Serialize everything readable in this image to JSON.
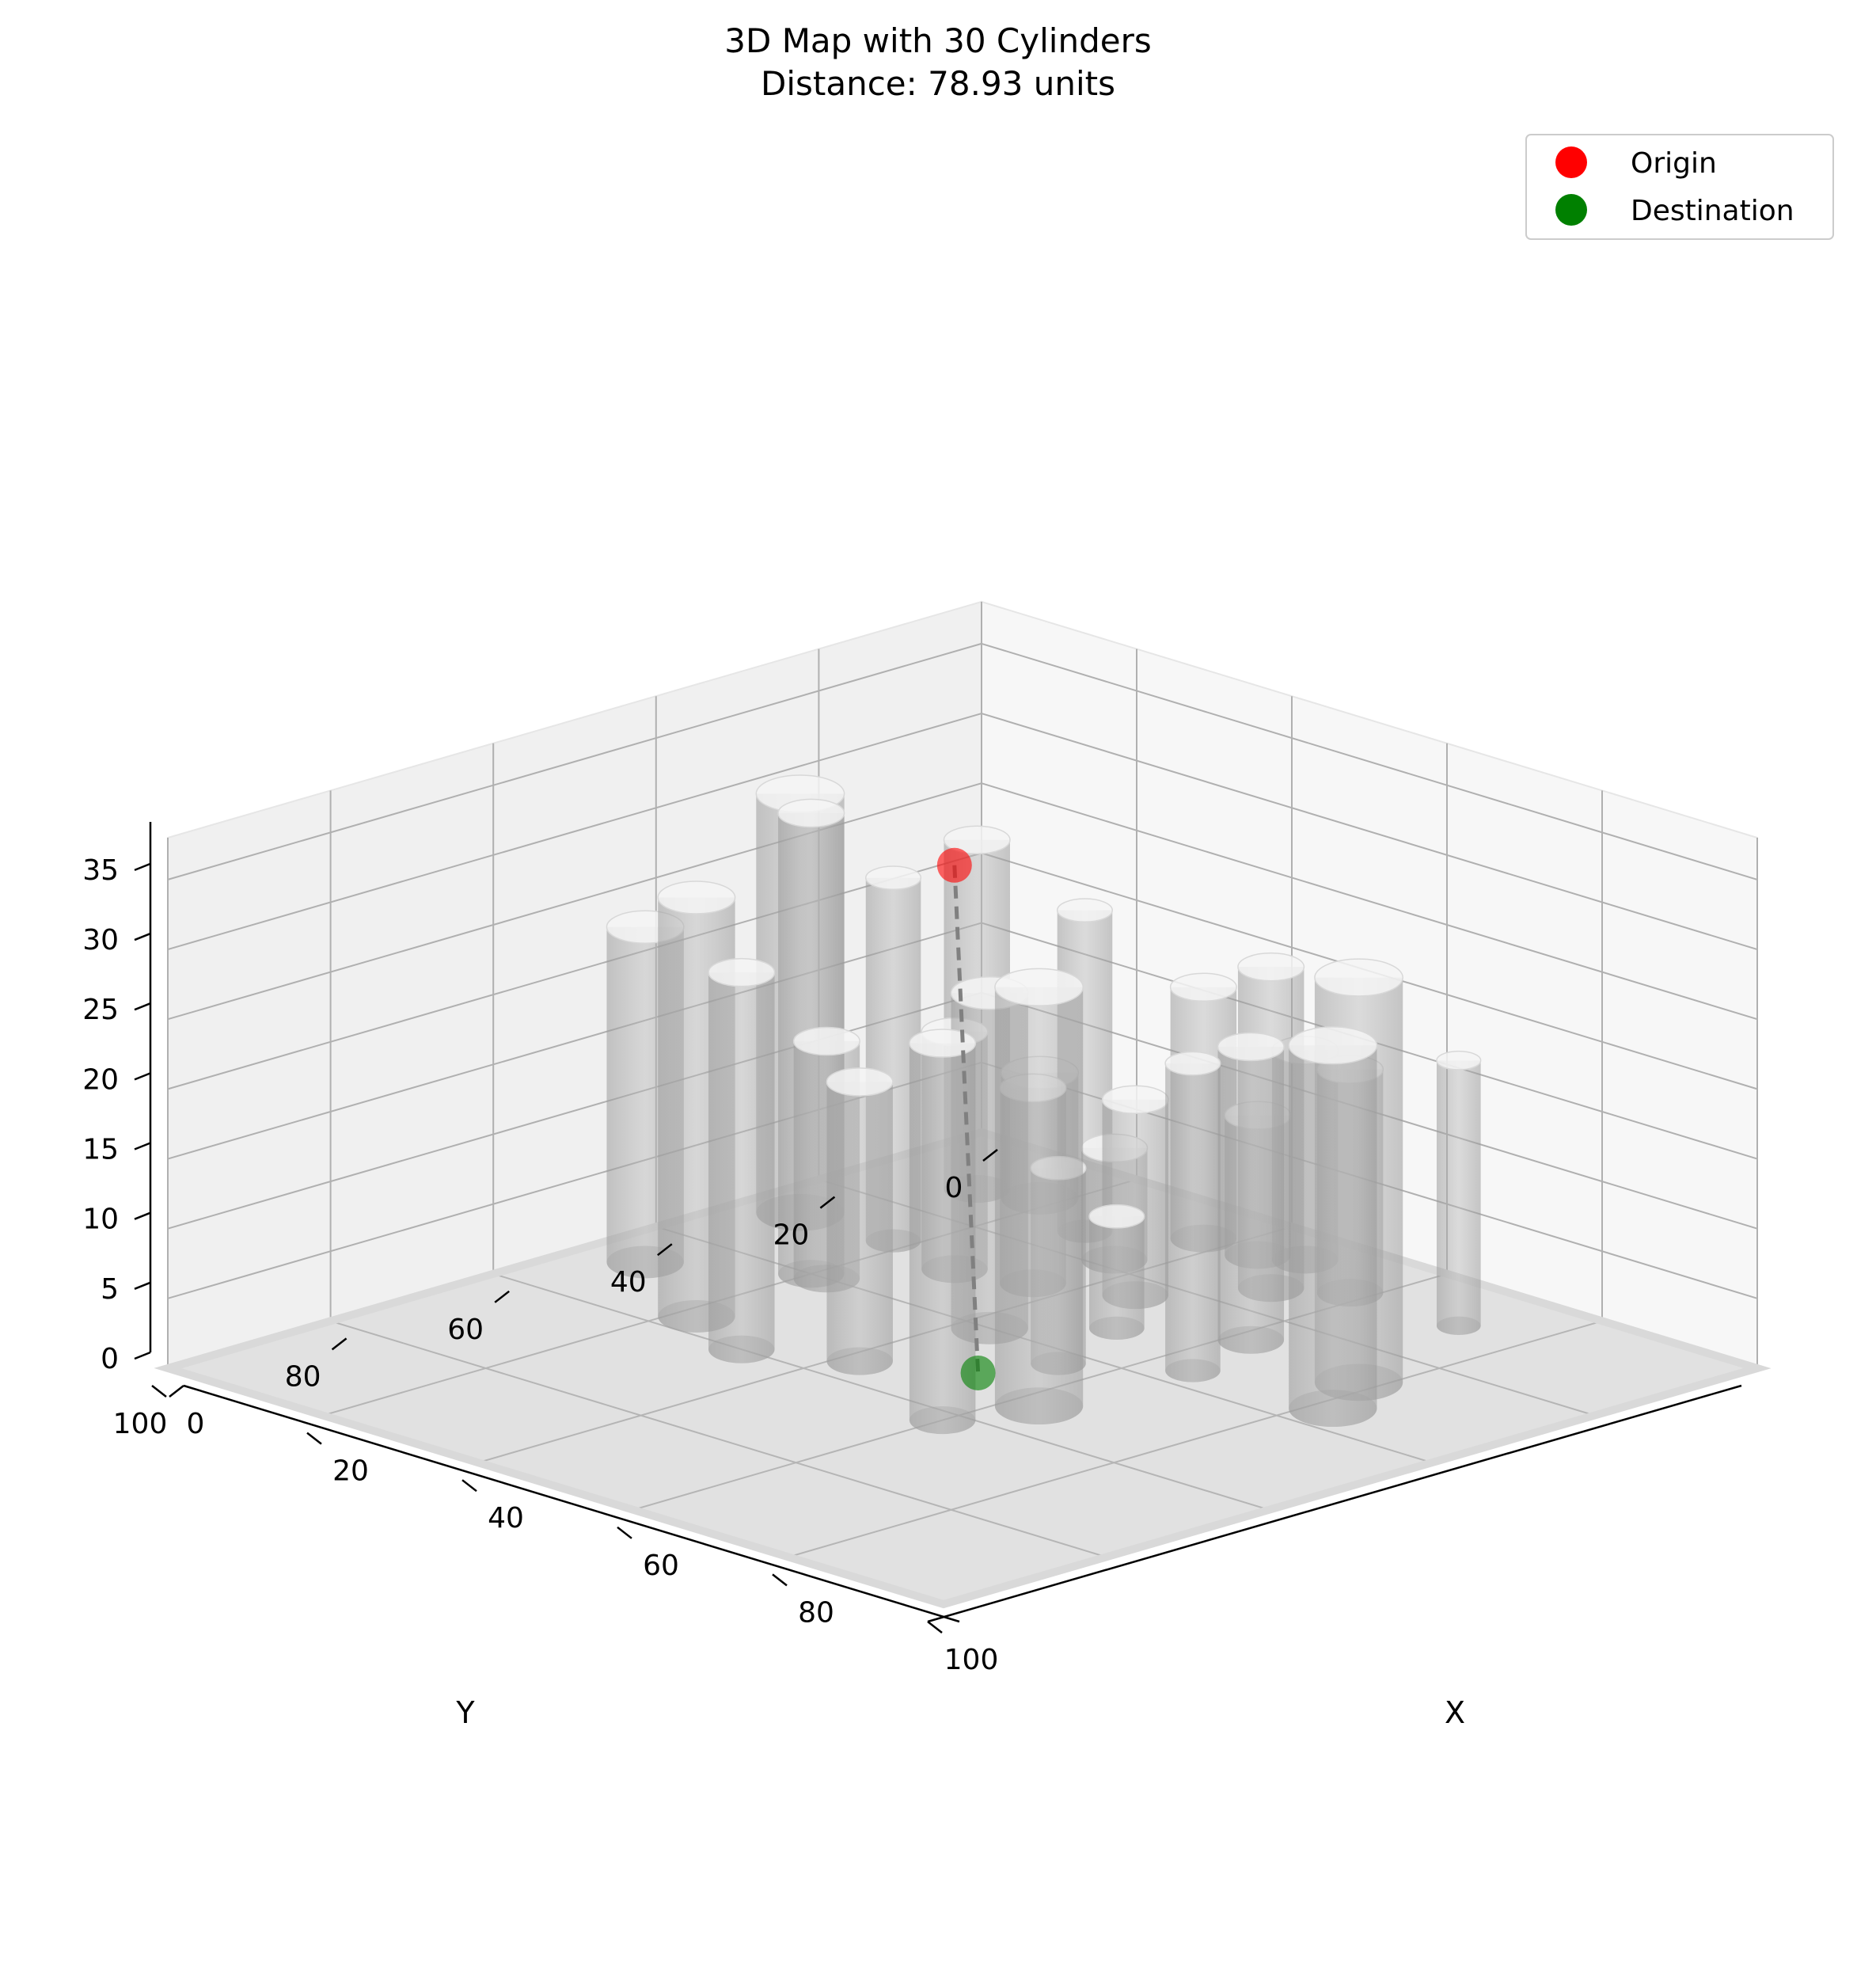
{
  "chart_data": {
    "type": "scatter",
    "title": "3D Map with 30 Cylinders",
    "subtitle": "Distance: 78.93 units",
    "xlabel": "X",
    "ylabel": "Y",
    "zlabel": "",
    "xlim": [
      0,
      100
    ],
    "ylim": [
      0,
      100
    ],
    "zlim": [
      0,
      38
    ],
    "x_ticks": [
      "0",
      "20",
      "40",
      "60",
      "80",
      "100"
    ],
    "y_ticks": [
      "0",
      "20",
      "40",
      "60",
      "80",
      "100"
    ],
    "z_ticks": [
      "0",
      "5",
      "10",
      "15",
      "20",
      "25",
      "30",
      "35"
    ],
    "grid": true,
    "legend_position": "top-right",
    "series": [
      {
        "name": "Origin",
        "color": "#ff0000",
        "points": [
          {
            "x": 7,
            "y": 10,
            "z": 22
          }
        ]
      },
      {
        "name": "Destination",
        "color": "#008000",
        "points": [
          {
            "x": 52,
            "y": 50,
            "z": 0
          }
        ]
      }
    ],
    "path": {
      "style": "dashed",
      "color": "#808080",
      "from": "Origin",
      "to": "Destination"
    },
    "cylinders": [
      {
        "x": 12,
        "y": 12,
        "r": 3,
        "h": 25
      },
      {
        "x": 6,
        "y": 28,
        "r": 4,
        "h": 30
      },
      {
        "x": 18,
        "y": 28,
        "r": 2.5,
        "h": 26
      },
      {
        "x": 20,
        "y": 40,
        "r": 3,
        "h": 33
      },
      {
        "x": 7,
        "y": 48,
        "r": 3.5,
        "h": 24
      },
      {
        "x": 32,
        "y": 60,
        "r": 3,
        "h": 27
      },
      {
        "x": 43,
        "y": 40,
        "r": 3.5,
        "h": 24
      },
      {
        "x": 22,
        "y": 40,
        "r": 3,
        "h": 17
      },
      {
        "x": 18,
        "y": 10,
        "r": 3.5,
        "h": 9
      },
      {
        "x": 22,
        "y": 56,
        "r": 3.5,
        "h": 30
      },
      {
        "x": 60,
        "y": 62,
        "r": 3,
        "h": 27
      },
      {
        "x": 42,
        "y": 55,
        "r": 3,
        "h": 20
      },
      {
        "x": 28,
        "y": 30,
        "r": 3,
        "h": 17
      },
      {
        "x": 36,
        "y": 28,
        "r": 3,
        "h": 14
      },
      {
        "x": 63,
        "y": 53,
        "r": 4,
        "h": 30
      },
      {
        "x": 78,
        "y": 28,
        "r": 4,
        "h": 29
      },
      {
        "x": 82,
        "y": 35,
        "r": 4,
        "h": 26
      },
      {
        "x": 52,
        "y": 14,
        "r": 3,
        "h": 23
      },
      {
        "x": 45,
        "y": 24,
        "r": 3,
        "h": 14
      },
      {
        "x": 62,
        "y": 26,
        "r": 3,
        "h": 21
      },
      {
        "x": 65,
        "y": 36,
        "r": 2.5,
        "h": 22
      },
      {
        "x": 28,
        "y": 14,
        "r": 2.5,
        "h": 23
      },
      {
        "x": 36,
        "y": 18,
        "r": 3,
        "h": 8
      },
      {
        "x": 37,
        "y": 8,
        "r": 3,
        "h": 18
      },
      {
        "x": 48,
        "y": 6,
        "r": 3,
        "h": 15
      },
      {
        "x": 44,
        "y": 8,
        "r": 3,
        "h": 10
      },
      {
        "x": 51,
        "y": 32,
        "r": 2.5,
        "h": 8
      },
      {
        "x": 58,
        "y": 10,
        "r": 3,
        "h": 16
      },
      {
        "x": 55,
        "y": 43,
        "r": 2.5,
        "h": 14
      },
      {
        "x": 72,
        "y": 10,
        "r": 2,
        "h": 19
      }
    ]
  }
}
